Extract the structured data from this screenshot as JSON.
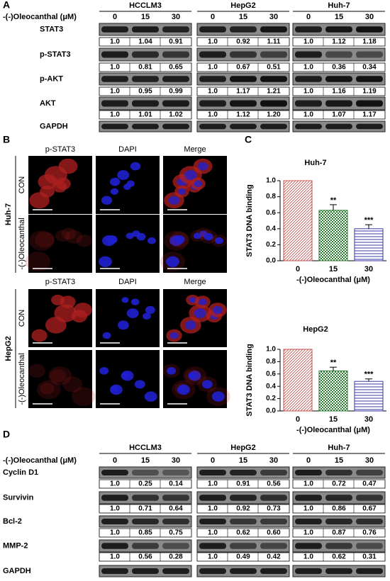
{
  "panel_a": {
    "label": "A",
    "treatment_label": "-(-)Oleocanthal (μM)",
    "concentrations": [
      "0",
      "15",
      "30"
    ],
    "cell_lines": [
      "HCCLM3",
      "HepG2",
      "Huh-7"
    ],
    "rows": [
      {
        "protein": "STAT3",
        "values": [
          [
            "1.0",
            "1.04",
            "0.91"
          ],
          [
            "1.0",
            "0.92",
            "1.11"
          ],
          [
            "1.0",
            "1.12",
            "1.18"
          ]
        ]
      },
      {
        "protein": "p-STAT3",
        "values": [
          [
            "1.0",
            "0.81",
            "0.65"
          ],
          [
            "1.0",
            "0.67",
            "0.51"
          ],
          [
            "1.0",
            "0.36",
            "0.34"
          ]
        ]
      },
      {
        "protein": "p-AKT",
        "values": [
          [
            "1.0",
            "0.95",
            "0.99"
          ],
          [
            "1.0",
            "1.17",
            "1.21"
          ],
          [
            "1.0",
            "1.16",
            "1.19"
          ]
        ]
      },
      {
        "protein": "AKT",
        "values": [
          [
            "1.0",
            "1.01",
            "1.02"
          ],
          [
            "1.0",
            "1.12",
            "1.20"
          ],
          [
            "1.0",
            "1.07",
            "1.17"
          ]
        ]
      },
      {
        "protein": "GAPDH"
      }
    ]
  },
  "panel_b": {
    "label": "B",
    "columns": [
      "p-STAT3",
      "DAPI",
      "Merge"
    ],
    "groups": [
      {
        "cell_line": "Huh-7",
        "rows": [
          "CON",
          "-(-)Oleocanthal"
        ]
      },
      {
        "cell_line": "HepG2",
        "rows": [
          "CON",
          "-(-)Oleocanthal"
        ]
      }
    ]
  },
  "panel_c": {
    "label": "C"
  },
  "chart_data": [
    {
      "type": "bar",
      "title": "Huh-7",
      "categories": [
        "0",
        "15",
        "30"
      ],
      "values": [
        1.0,
        0.63,
        0.4
      ],
      "errors": [
        0,
        0.07,
        0.05
      ],
      "annotations": [
        null,
        "**",
        "***"
      ],
      "colors": [
        "#c0504d",
        "#2e7d32",
        "#3a3aa8"
      ],
      "x_label": "-(-)Oleocanthal (μM)",
      "y_label": "STAT3 DNA binding",
      "ylim": [
        0,
        1
      ],
      "yticks": [
        {
          "value": 0,
          "label": "0.0"
        },
        {
          "value": 0.2,
          "label": "0.2"
        },
        {
          "value": 0.4,
          "label": "0.4"
        },
        {
          "value": 0.6,
          "label": "0.6"
        },
        {
          "value": 0.8,
          "label": "0.8"
        },
        {
          "value": 1,
          "label": "1.0"
        }
      ]
    },
    {
      "type": "bar",
      "title": "HepG2",
      "categories": [
        "0",
        "15",
        "30"
      ],
      "values": [
        1.0,
        0.65,
        0.48
      ],
      "errors": [
        0,
        0.06,
        0.04
      ],
      "annotations": [
        null,
        "**",
        "***"
      ],
      "colors": [
        "#c0504d",
        "#2e7d32",
        "#3a3aa8"
      ],
      "x_label": "-(-)Oleocanthal (μM)",
      "y_label": "STAT3 DNA binding",
      "ylim": [
        0,
        1
      ],
      "yticks": [
        {
          "value": 0,
          "label": "0.0"
        },
        {
          "value": 0.2,
          "label": "0.2"
        },
        {
          "value": 0.4,
          "label": "0.4"
        },
        {
          "value": 0.6,
          "label": "0.6"
        },
        {
          "value": 0.8,
          "label": "0.8"
        },
        {
          "value": 1,
          "label": "1.0"
        }
      ]
    }
  ],
  "panel_d": {
    "label": "D",
    "treatment_label": "-(-)Oleocanthal (μM)",
    "concentrations": [
      "0",
      "15",
      "30"
    ],
    "cell_lines": [
      "HCCLM3",
      "HepG2",
      "Huh-7"
    ],
    "rows": [
      {
        "protein": "Cyclin D1",
        "values": [
          [
            "1.0",
            "0.25",
            "0.14"
          ],
          [
            "1.0",
            "0.91",
            "0.56"
          ],
          [
            "1.0",
            "0.72",
            "0.47"
          ]
        ]
      },
      {
        "protein": "Survivin",
        "values": [
          [
            "1.0",
            "0.71",
            "0.64"
          ],
          [
            "1.0",
            "0.92",
            "0.73"
          ],
          [
            "1.0",
            "0.86",
            "0.67"
          ]
        ]
      },
      {
        "protein": "Bcl-2",
        "values": [
          [
            "1.0",
            "0.85",
            "0.75"
          ],
          [
            "1.0",
            "0.62",
            "0.60"
          ],
          [
            "1.0",
            "0.87",
            "0.76"
          ]
        ]
      },
      {
        "protein": "MMP-2",
        "values": [
          [
            "1.0",
            "0.56",
            "0.28"
          ],
          [
            "1.0",
            "0.49",
            "0.42"
          ],
          [
            "1.0",
            "0.62",
            "0.31"
          ]
        ]
      },
      {
        "protein": "GAPDH"
      }
    ]
  }
}
